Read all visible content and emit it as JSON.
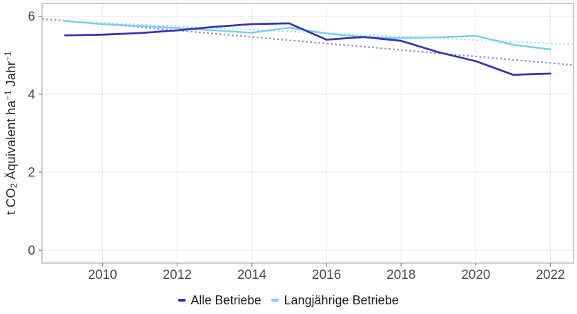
{
  "y_axis": {
    "label_parts": {
      "p1": "t CO",
      "sub": "2",
      "p2": " Äquivalent ha",
      "sup1": "−1",
      "p3": " Jahr",
      "sup2": "−1"
    }
  },
  "chart_data": {
    "type": "line",
    "title": "",
    "xlabel": "",
    "ylabel": "t CO₂ Äquivalent ha⁻¹ Jahr⁻¹",
    "x": [
      2009,
      2010,
      2011,
      2012,
      2013,
      2014,
      2015,
      2016,
      2017,
      2018,
      2019,
      2020,
      2021,
      2022
    ],
    "series": [
      {
        "name": "Alle Betriebe Trend",
        "role": "trend",
        "dash": "dotted",
        "color": "#9089d6",
        "width": 2.2,
        "x": [
          2008.38,
          2022.62
        ],
        "values": [
          5.94,
          4.75
        ]
      },
      {
        "name": "Langjährige Betriebe Trend",
        "role": "trend",
        "dash": "dotted",
        "color": "#a6e1f3",
        "width": 2.2,
        "x": [
          2008.38,
          2022.62
        ],
        "values": [
          5.9,
          5.28
        ]
      },
      {
        "name": "Langjährige Betriebe",
        "role": "data",
        "dash": "solid",
        "color": "#76d0ee",
        "width": 2.5,
        "values": [
          5.88,
          5.8,
          5.75,
          5.7,
          5.64,
          5.58,
          5.71,
          5.56,
          5.47,
          5.44,
          5.46,
          5.5,
          5.27,
          5.15
        ]
      },
      {
        "name": "Alle Betriebe",
        "role": "data",
        "dash": "solid",
        "color": "#3434b4",
        "width": 2.8,
        "values": [
          5.51,
          5.53,
          5.57,
          5.64,
          5.73,
          5.8,
          5.82,
          5.4,
          5.47,
          5.37,
          5.08,
          4.85,
          4.5,
          4.53
        ]
      }
    ],
    "x_ticks": [
      2010,
      2012,
      2014,
      2016,
      2018,
      2020,
      2022
    ],
    "y_ticks": [
      0,
      2,
      4,
      6
    ],
    "xlim": [
      2008.38,
      2022.62
    ],
    "ylim": [
      -0.33,
      6.33
    ],
    "grid": "major-only",
    "legend": {
      "position": "bottom",
      "items": [
        {
          "label": "Alle Betriebe",
          "color": "#3434b4"
        },
        {
          "label": "Langjährige Betriebe",
          "color": "#76d0ee"
        }
      ]
    }
  }
}
